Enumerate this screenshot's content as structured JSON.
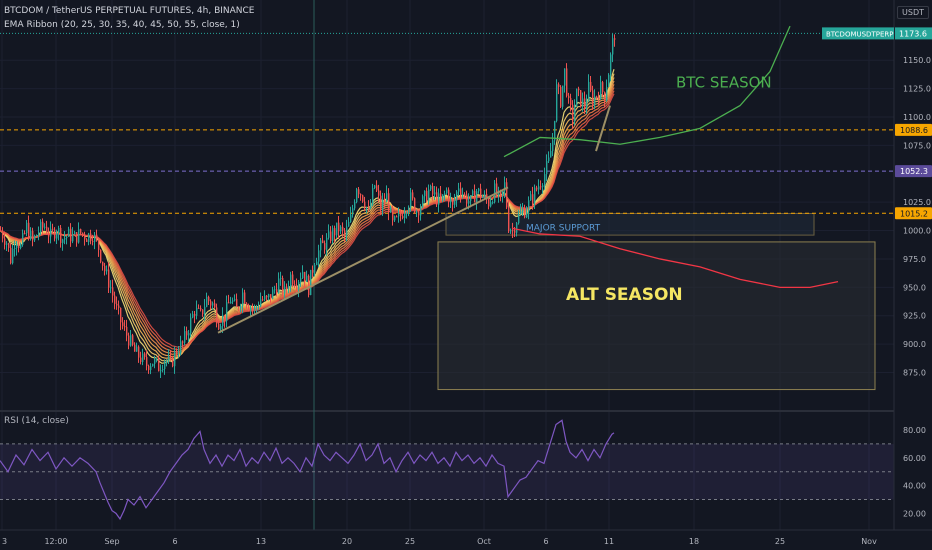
{
  "header": {
    "symbol_line": "BTCDOM / TetherUS PERPETUAL FUTURES, 4h, BINANCE",
    "indicator_line": "EMA Ribbon (20, 25, 30, 35, 40, 45, 50, 55, close, 1)",
    "rsi_label": "RSI (14, close)",
    "currency_button": "USDT"
  },
  "colors": {
    "background": "#131722",
    "up_candle": "#26a69a",
    "down_candle": "#ef5350",
    "btc_season_curve": "#4caf50",
    "alt_season_curve": "#f23645",
    "alt_box_border": "#8d8050",
    "trendline": "#9c8f66",
    "rsi_line": "#7e57c2",
    "price_tag_teal": "#26a69a",
    "price_tag_orange": "#f7a600",
    "price_tag_purple": "#5b4b9a"
  },
  "chart_data": [
    {
      "type": "candlestick",
      "title": "BTCDOM / TetherUS PERPETUAL FUTURES, 4h, BINANCE",
      "price_axis": {
        "ticks": [
          "1150.0",
          "1125.0",
          "1100.0",
          "1075.0",
          "1025.0",
          "1000.0",
          "975.0",
          "950.0",
          "925.0",
          "900.0",
          "875.0"
        ],
        "range": [
          842,
          1203
        ]
      },
      "time_axis": {
        "ticks": [
          "3",
          "12:00",
          "Sep",
          "6",
          "13",
          "20",
          "25",
          "Oct",
          "6",
          "11",
          "18",
          "25",
          "Nov"
        ]
      },
      "price_path": [
        [
          0,
          1000
        ],
        [
          6,
          990
        ],
        [
          10,
          975
        ],
        [
          15,
          995
        ],
        [
          20,
          985
        ],
        [
          26,
          1003
        ],
        [
          32,
          990
        ],
        [
          38,
          1000
        ],
        [
          44,
          1004
        ],
        [
          50,
          995
        ],
        [
          56,
          1002
        ],
        [
          62,
          993
        ],
        [
          68,
          996
        ],
        [
          74,
          994
        ],
        [
          80,
          998
        ],
        [
          86,
          995
        ],
        [
          92,
          997
        ],
        [
          98,
          985
        ],
        [
          104,
          965
        ],
        [
          110,
          950
        ],
        [
          116,
          930
        ],
        [
          122,
          915
        ],
        [
          128,
          905
        ],
        [
          134,
          893
        ],
        [
          140,
          888
        ],
        [
          146,
          882
        ],
        [
          152,
          885
        ],
        [
          158,
          880
        ],
        [
          164,
          887
        ],
        [
          170,
          882
        ],
        [
          176,
          895
        ],
        [
          182,
          900
        ],
        [
          188,
          915
        ],
        [
          194,
          930
        ],
        [
          200,
          925
        ],
        [
          206,
          940
        ],
        [
          212,
          935
        ],
        [
          218,
          920
        ],
        [
          224,
          925
        ],
        [
          230,
          940
        ],
        [
          236,
          930
        ],
        [
          242,
          945
        ],
        [
          248,
          935
        ],
        [
          254,
          930
        ],
        [
          260,
          940
        ],
        [
          266,
          938
        ],
        [
          272,
          945
        ],
        [
          278,
          955
        ],
        [
          284,
          945
        ],
        [
          290,
          960
        ],
        [
          296,
          955
        ],
        [
          302,
          965
        ],
        [
          308,
          950
        ],
        [
          314,
          975
        ],
        [
          320,
          985
        ],
        [
          326,
          990
        ],
        [
          332,
          998
        ],
        [
          338,
          1002
        ],
        [
          344,
          995
        ],
        [
          350,
          1010
        ],
        [
          356,
          1040
        ],
        [
          362,
          1030
        ],
        [
          368,
          1015
        ],
        [
          374,
          1040
        ],
        [
          380,
          1020
        ],
        [
          386,
          1030
        ],
        [
          392,
          1005
        ],
        [
          398,
          1010
        ],
        [
          404,
          1020
        ],
        [
          410,
          1028
        ],
        [
          416,
          1018
        ],
        [
          422,
          1025
        ],
        [
          428,
          1035
        ],
        [
          434,
          1030
        ],
        [
          440,
          1025
        ],
        [
          446,
          1035
        ],
        [
          452,
          1020
        ],
        [
          458,
          1040
        ],
        [
          464,
          1030
        ],
        [
          470,
          1025
        ],
        [
          476,
          1035
        ],
        [
          482,
          1030
        ],
        [
          488,
          1025
        ],
        [
          494,
          1035
        ],
        [
          500,
          1025
        ],
        [
          504,
          1040
        ],
        [
          508,
          1005
        ],
        [
          512,
          1000
        ],
        [
          516,
          1010
        ],
        [
          520,
          1015
        ],
        [
          526,
          1020
        ],
        [
          532,
          1030
        ],
        [
          538,
          1040
        ],
        [
          544,
          1050
        ],
        [
          548,
          1060
        ],
        [
          552,
          1080
        ],
        [
          556,
          1125
        ],
        [
          560,
          1115
        ],
        [
          564,
          1140
        ],
        [
          568,
          1110
        ],
        [
          572,
          1100
        ],
        [
          576,
          1120
        ],
        [
          580,
          1115
        ],
        [
          584,
          1110
        ],
        [
          588,
          1125
        ],
        [
          592,
          1115
        ],
        [
          596,
          1120
        ],
        [
          600,
          1125
        ],
        [
          604,
          1120
        ],
        [
          608,
          1140
        ],
        [
          612,
          1165
        ],
        [
          614,
          1173.6
        ]
      ],
      "ema_ribbon_periods": [
        20,
        25,
        30,
        35,
        40,
        45,
        50,
        55
      ],
      "projections": [
        {
          "label": "BTC SEASON",
          "points": [
            [
              504,
              1065
            ],
            [
              540,
              1082
            ],
            [
              580,
              1080
            ],
            [
              620,
              1076
            ],
            [
              660,
              1082
            ],
            [
              700,
              1090
            ],
            [
              740,
              1110
            ],
            [
              770,
              1140
            ],
            [
              790,
              1180
            ]
          ]
        },
        {
          "label": "ALT SEASON",
          "points": [
            [
              512,
              1002
            ],
            [
              540,
              997
            ],
            [
              580,
              995
            ],
            [
              620,
              984
            ],
            [
              660,
              975
            ],
            [
              700,
              968
            ],
            [
              740,
              957
            ],
            [
              780,
              950
            ],
            [
              810,
              950
            ],
            [
              838,
              955
            ]
          ]
        }
      ],
      "trendlines": [
        {
          "points": [
            [
              218,
              910
            ],
            [
              508,
              1038
            ]
          ]
        },
        {
          "points": [
            [
              596,
              1070
            ],
            [
              610,
              1110
            ]
          ]
        }
      ],
      "annotations": {
        "btc_season": "BTC SEASON",
        "alt_season": "ALT SEASON",
        "major_support": "MAJOR SUPPORT"
      },
      "horizontal_levels": [
        {
          "value": 1088.6,
          "label": "1088.6",
          "style": "dashed-orange"
        },
        {
          "value": 1052.3,
          "label": "1052.3",
          "style": "dashed-purple"
        },
        {
          "value": 1015.2,
          "label": "1015.2",
          "style": "dashed-orange"
        }
      ],
      "last_price": {
        "value": 1173.6,
        "label": "1173.6",
        "ticker": "BTCDOMUSDTPERP"
      },
      "support_zone": {
        "from": 996,
        "to": 1015
      },
      "alt_season_zone": {
        "from": 860,
        "to": 990
      }
    },
    {
      "type": "line",
      "title": "RSI (14, close)",
      "y_ticks": [
        "80.00",
        "60.00",
        "40.00",
        "20.00"
      ],
      "ylim": [
        8,
        93
      ],
      "bands": {
        "upper": 70,
        "middle": 50,
        "lower": 30
      },
      "rsi_path": [
        [
          0,
          58
        ],
        [
          8,
          50
        ],
        [
          16,
          62
        ],
        [
          24,
          55
        ],
        [
          32,
          66
        ],
        [
          40,
          58
        ],
        [
          48,
          64
        ],
        [
          56,
          52
        ],
        [
          64,
          60
        ],
        [
          72,
          54
        ],
        [
          80,
          60
        ],
        [
          88,
          56
        ],
        [
          96,
          50
        ],
        [
          100,
          42
        ],
        [
          104,
          35
        ],
        [
          108,
          28
        ],
        [
          112,
          22
        ],
        [
          116,
          20
        ],
        [
          120,
          16
        ],
        [
          124,
          22
        ],
        [
          128,
          30
        ],
        [
          134,
          26
        ],
        [
          140,
          32
        ],
        [
          146,
          24
        ],
        [
          152,
          30
        ],
        [
          158,
          36
        ],
        [
          164,
          42
        ],
        [
          170,
          50
        ],
        [
          176,
          56
        ],
        [
          182,
          62
        ],
        [
          188,
          66
        ],
        [
          194,
          74
        ],
        [
          200,
          79
        ],
        [
          204,
          66
        ],
        [
          210,
          56
        ],
        [
          216,
          62
        ],
        [
          222,
          54
        ],
        [
          228,
          62
        ],
        [
          234,
          58
        ],
        [
          240,
          66
        ],
        [
          246,
          54
        ],
        [
          252,
          60
        ],
        [
          258,
          56
        ],
        [
          264,
          64
        ],
        [
          270,
          58
        ],
        [
          276,
          67
        ],
        [
          282,
          56
        ],
        [
          288,
          60
        ],
        [
          294,
          56
        ],
        [
          300,
          50
        ],
        [
          306,
          60
        ],
        [
          312,
          54
        ],
        [
          318,
          70
        ],
        [
          324,
          62
        ],
        [
          330,
          58
        ],
        [
          336,
          64
        ],
        [
          342,
          60
        ],
        [
          348,
          56
        ],
        [
          354,
          62
        ],
        [
          360,
          70
        ],
        [
          366,
          58
        ],
        [
          372,
          62
        ],
        [
          378,
          70
        ],
        [
          384,
          56
        ],
        [
          390,
          60
        ],
        [
          396,
          50
        ],
        [
          402,
          58
        ],
        [
          408,
          64
        ],
        [
          414,
          56
        ],
        [
          420,
          62
        ],
        [
          426,
          58
        ],
        [
          432,
          64
        ],
        [
          438,
          56
        ],
        [
          444,
          60
        ],
        [
          450,
          54
        ],
        [
          456,
          64
        ],
        [
          462,
          58
        ],
        [
          468,
          62
        ],
        [
          474,
          56
        ],
        [
          480,
          60
        ],
        [
          486,
          54
        ],
        [
          492,
          62
        ],
        [
          498,
          56
        ],
        [
          504,
          54
        ],
        [
          508,
          32
        ],
        [
          512,
          36
        ],
        [
          516,
          40
        ],
        [
          520,
          44
        ],
        [
          526,
          46
        ],
        [
          532,
          52
        ],
        [
          538,
          58
        ],
        [
          544,
          56
        ],
        [
          550,
          70
        ],
        [
          556,
          84
        ],
        [
          562,
          87
        ],
        [
          566,
          72
        ],
        [
          570,
          64
        ],
        [
          576,
          60
        ],
        [
          582,
          66
        ],
        [
          588,
          58
        ],
        [
          594,
          66
        ],
        [
          600,
          60
        ],
        [
          606,
          70
        ],
        [
          612,
          77
        ],
        [
          614,
          78
        ]
      ]
    }
  ]
}
